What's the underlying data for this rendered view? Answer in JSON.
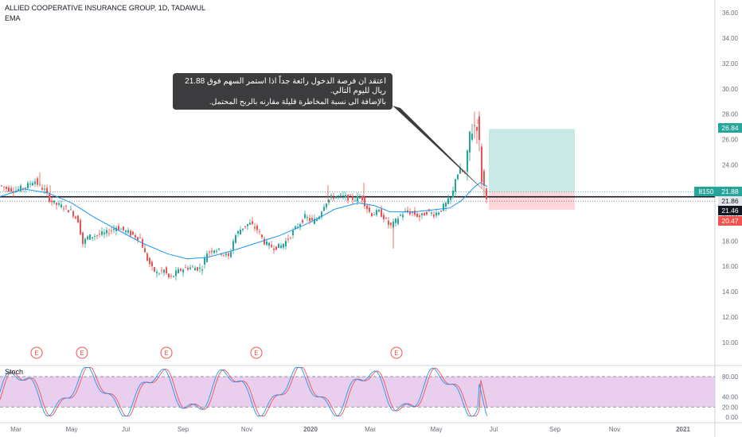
{
  "header": {
    "title": "ALLIED COOPERATIVE INSURANCE GROUP, 1D, TADAWUL",
    "indicator": "EMA"
  },
  "annotation": {
    "line1": "اعتقد ان فرصة الدخول رائعة جداً اذا استمر السهم فوق 21.88 ريال لليوم التالي.",
    "line2": "بالإضافة الى نسبة المخاطرة قليلة مقارنه بالربح المحتمل."
  },
  "price_labels": {
    "target": "26.84",
    "entry": "21.88",
    "symbol_tag": "8150",
    "support": "21.86",
    "last": "21.46",
    "stop": "20.47"
  },
  "earnings_marker": "E",
  "stoch": {
    "label": "Stoch",
    "ticks": [
      "80.00",
      "40.00",
      "20.00",
      "0.00"
    ]
  },
  "colors": {
    "up": "#26a69a",
    "down": "#ef5350",
    "ema": "#2196f3",
    "stoch_k": "#2196f3",
    "stoch_d": "#ef5350",
    "stoch_band": "#e1bee7",
    "target_zone": "#b2dfdb",
    "stop_zone": "#ffcdd2",
    "last_label": "#131722",
    "annotation_bg": "#3c3c3e"
  },
  "chart_data": {
    "type": "candlestick",
    "title": "ALLIED COOPERATIVE INSURANCE GROUP, 1D, TADAWUL",
    "x_ticks": [
      "Mar",
      "May",
      "Jul",
      "Sep",
      "Nov",
      "2020",
      "Mar",
      "May",
      "Jul",
      "Sep",
      "Nov",
      "2021"
    ],
    "y_ticks": [
      "36.00",
      "34.00",
      "32.00",
      "30.00",
      "28.00",
      "26.00",
      "24.00",
      "22.00",
      "20.00",
      "18.00",
      "16.00",
      "14.00",
      "12.00",
      "10.00"
    ],
    "ylim": [
      9,
      37
    ],
    "price_path": [
      [
        0,
        22.4
      ],
      [
        12,
        22.1
      ],
      [
        22,
        22.0
      ],
      [
        35,
        22.3
      ],
      [
        45,
        22.8
      ],
      [
        52,
        22.3
      ],
      [
        58,
        22.0
      ],
      [
        65,
        21.2
      ],
      [
        72,
        20.9
      ],
      [
        82,
        20.7
      ],
      [
        92,
        20.3
      ],
      [
        100,
        19.6
      ],
      [
        106,
        17.8
      ],
      [
        112,
        18.3
      ],
      [
        125,
        18.5
      ],
      [
        135,
        18.6
      ],
      [
        148,
        19.1
      ],
      [
        165,
        18.6
      ],
      [
        178,
        18.2
      ],
      [
        185,
        16.8
      ],
      [
        193,
        15.8
      ],
      [
        200,
        15.4
      ],
      [
        208,
        15.7
      ],
      [
        215,
        15.0
      ],
      [
        225,
        15.6
      ],
      [
        235,
        15.9
      ],
      [
        245,
        15.9
      ],
      [
        255,
        15.8
      ],
      [
        262,
        17.1
      ],
      [
        272,
        17.4
      ],
      [
        282,
        17.0
      ],
      [
        290,
        16.7
      ],
      [
        296,
        18.3
      ],
      [
        305,
        19.0
      ],
      [
        315,
        19.4
      ],
      [
        325,
        18.9
      ],
      [
        335,
        17.8
      ],
      [
        345,
        17.5
      ],
      [
        355,
        17.6
      ],
      [
        363,
        18.1
      ],
      [
        372,
        18.9
      ],
      [
        385,
        19.9
      ],
      [
        395,
        19.5
      ],
      [
        402,
        19.9
      ],
      [
        410,
        21.0
      ],
      [
        420,
        21.5
      ],
      [
        430,
        21.5
      ],
      [
        440,
        21.4
      ],
      [
        448,
        21.3
      ],
      [
        456,
        21.5
      ],
      [
        462,
        20.7
      ],
      [
        468,
        20.1
      ],
      [
        478,
        20.3
      ],
      [
        485,
        19.8
      ],
      [
        492,
        19.1
      ],
      [
        497,
        19.4
      ],
      [
        504,
        20.0
      ],
      [
        512,
        20.3
      ],
      [
        520,
        20.2
      ],
      [
        530,
        19.9
      ],
      [
        538,
        20.3
      ],
      [
        548,
        20.1
      ],
      [
        556,
        20.5
      ],
      [
        563,
        21.0
      ],
      [
        570,
        21.5
      ],
      [
        574,
        23.0
      ],
      [
        580,
        23.6
      ],
      [
        587,
        23.2
      ],
      [
        592,
        26.5
      ],
      [
        597,
        27.0
      ],
      [
        601,
        27.3
      ],
      [
        604,
        25.5
      ],
      [
        607,
        23.0
      ],
      [
        610,
        22.2
      ],
      [
        612,
        21.5
      ]
    ],
    "ema_path": [
      [
        0,
        21.5
      ],
      [
        30,
        22.1
      ],
      [
        60,
        21.8
      ],
      [
        90,
        21.0
      ],
      [
        120,
        19.8
      ],
      [
        150,
        18.8
      ],
      [
        180,
        17.8
      ],
      [
        210,
        17.0
      ],
      [
        235,
        16.6
      ],
      [
        260,
        16.7
      ],
      [
        290,
        17.2
      ],
      [
        320,
        17.8
      ],
      [
        350,
        18.4
      ],
      [
        380,
        19.2
      ],
      [
        400,
        19.8
      ],
      [
        420,
        20.5
      ],
      [
        450,
        21.0
      ],
      [
        470,
        20.8
      ],
      [
        490,
        20.3
      ],
      [
        520,
        20.3
      ],
      [
        550,
        20.5
      ],
      [
        565,
        20.6
      ],
      [
        580,
        21.2
      ],
      [
        595,
        22.2
      ],
      [
        603,
        22.6
      ],
      [
        612,
        22.3
      ]
    ],
    "earnings_x": [
      46,
      103,
      209,
      322,
      498
    ],
    "position": {
      "entry": 21.88,
      "target": 26.84,
      "stop": 20.47
    },
    "support_level": 21.86,
    "stoch_range": [
      0,
      100
    ],
    "stoch_bands": [
      20,
      80
    ]
  }
}
